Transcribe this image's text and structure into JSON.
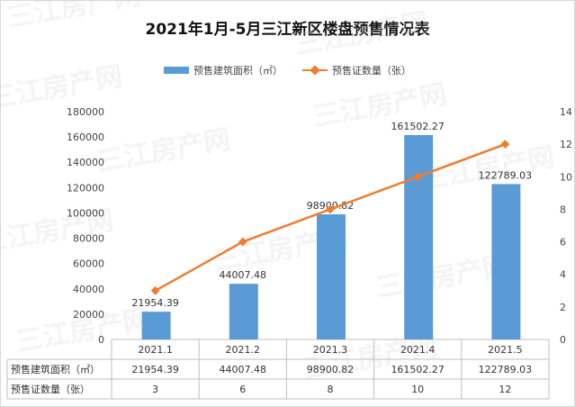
{
  "chart_data": {
    "type": "bar",
    "title": "2021年1月-5月三江新区楼盘预售情况表",
    "categories": [
      "2021.1",
      "2021.2",
      "2021.3",
      "2021.4",
      "2021.5"
    ],
    "series": [
      {
        "name": "预售建筑面积（㎡）",
        "type": "bar",
        "axis": "left",
        "color": "#5b9bd5",
        "values": [
          21954.39,
          44007.48,
          98900.82,
          161502.27,
          122789.03
        ],
        "labels": [
          "21954.39",
          "44007.48",
          "98900.82",
          "161502.27",
          "122789.03"
        ]
      },
      {
        "name": "预售证数量（张）",
        "type": "line",
        "axis": "right",
        "color": "#ed7d31",
        "values": [
          3,
          6,
          8,
          10,
          12
        ]
      }
    ],
    "y_left": {
      "ylim": [
        0,
        180000
      ],
      "ticks": [
        "0",
        "20000",
        "40000",
        "60000",
        "80000",
        "100000",
        "120000",
        "140000",
        "160000",
        "180000"
      ]
    },
    "y_right": {
      "ylim": [
        0,
        14
      ],
      "ticks": [
        "0",
        "2",
        "4",
        "6",
        "8",
        "10",
        "12",
        "14"
      ]
    },
    "table": {
      "rows": [
        {
          "label": "预售建筑面积（㎡）",
          "values": [
            "21954.39",
            "44007.48",
            "98900.82",
            "161502.27",
            "122789.03"
          ],
          "color": "#5b9bd5"
        },
        {
          "label": "预售证数量（张）",
          "values": [
            "3",
            "6",
            "8",
            "10",
            "12"
          ],
          "color": "#ed7d31"
        }
      ]
    },
    "legend_position": "top",
    "grid": false
  },
  "watermark": "三江房产网"
}
